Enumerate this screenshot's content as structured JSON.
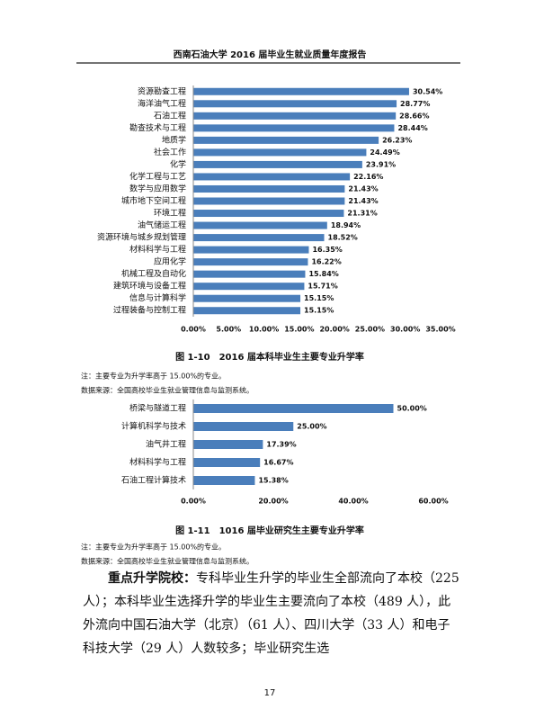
{
  "header": "西南石油大学 2016 届毕业生就业质量年度报告",
  "chart_data": [
    {
      "type": "bar",
      "orientation": "horizontal",
      "color": "#4a7ebb",
      "grid": false,
      "title": "图 1-10　2016 届本科毕业生主要专业升学率",
      "notes": [
        "注：主要专业为升学率高于 15.00%的专业。",
        "数据来源：全国高校毕业生就业管理信息与监测系统。"
      ],
      "categories": [
        "资源勘查工程",
        "海洋油气工程",
        "石油工程",
        "勘查技术与工程",
        "地质学",
        "社会工作",
        "化学",
        "化学工程与工艺",
        "数学与应用数学",
        "城市地下空间工程",
        "环境工程",
        "油气储运工程",
        "资源环境与城乡规划管理",
        "材料科学与工程",
        "应用化学",
        "机械工程及自动化",
        "建筑环境与设备工程",
        "信息与计算科学",
        "过程装备与控制工程"
      ],
      "values": [
        30.54,
        28.77,
        28.66,
        28.44,
        26.23,
        24.49,
        23.91,
        22.16,
        21.43,
        21.43,
        21.31,
        18.94,
        18.52,
        16.35,
        16.22,
        15.84,
        15.71,
        15.15,
        15.15
      ],
      "value_labels": [
        "30.54%",
        "28.77%",
        "28.66%",
        "28.44%",
        "26.23%",
        "24.49%",
        "23.91%",
        "22.16%",
        "21.43%",
        "21.43%",
        "21.31%",
        "18.94%",
        "18.52%",
        "16.35%",
        "16.22%",
        "15.84%",
        "15.71%",
        "15.15%",
        "15.15%"
      ],
      "xlim": [
        0,
        35
      ],
      "xticks": [
        {
          "value": 0,
          "label": "0.00%"
        },
        {
          "value": 5,
          "label": "5.00%"
        },
        {
          "value": 10,
          "label": "10.00%"
        },
        {
          "value": 15,
          "label": "15.00%"
        },
        {
          "value": 20,
          "label": "20.00%"
        },
        {
          "value": 25,
          "label": "25.00%"
        },
        {
          "value": 30,
          "label": "30.00%"
        },
        {
          "value": 35,
          "label": "35.00%"
        }
      ]
    },
    {
      "type": "bar",
      "orientation": "horizontal",
      "color": "#4a7ebb",
      "grid": false,
      "title": "图 1-11　1016 届毕业研究生主要专业升学率",
      "notes": [
        "注：主要专业为升学率高于 15.00%的专业。",
        "数据来源：全国高校毕业生就业管理信息与监测系统。"
      ],
      "categories": [
        "桥梁与隧道工程",
        "计算机科学与技术",
        "油气井工程",
        "材料科学与工程",
        "石油工程计算技术"
      ],
      "values": [
        50.0,
        25.0,
        17.39,
        16.67,
        15.38
      ],
      "value_labels": [
        "50.00%",
        "25.00%",
        "17.39%",
        "16.67%",
        "15.38%"
      ],
      "xlim": [
        0,
        60
      ],
      "xticks": [
        {
          "value": 0,
          "label": "0.00%"
        },
        {
          "value": 20,
          "label": "20.00%"
        },
        {
          "value": 40,
          "label": "40.00%"
        },
        {
          "value": 60,
          "label": "60.00%"
        }
      ]
    }
  ],
  "paragraph": {
    "lead": "重点升学院校：",
    "text": "专科毕业生升学的毕业生全部流向了本校（225 人）；本科毕业生选择升学的毕业生主要流向了本校（489 人），此外流向中国石油大学（北京）（61 人）、四川大学（33 人）和电子科技大学（29 人）人数较多；毕业研究生选"
  },
  "page_number": "17"
}
